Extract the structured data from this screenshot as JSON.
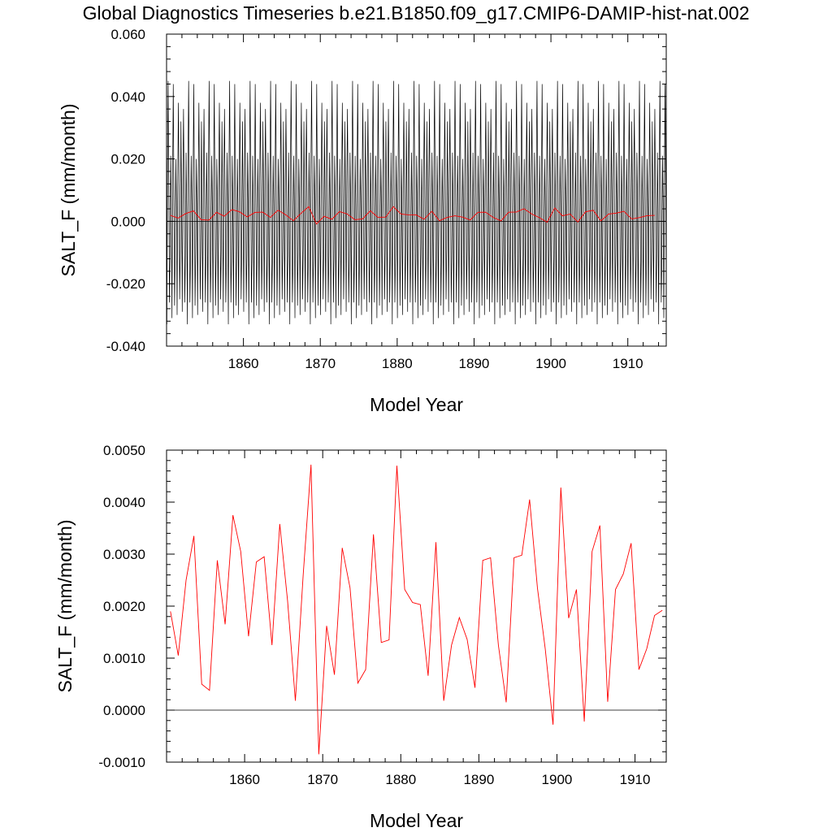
{
  "figure_title": "Global Diagnostics Timeseries b.e21.B1850.f09_g17.CMIP6-DAMIP-hist-nat.002",
  "colors": {
    "monthly": "#000000",
    "annual": "#ff0000",
    "zero_line": "#000000"
  },
  "chart_data": [
    {
      "type": "line",
      "title": "",
      "xlabel": "Model Year",
      "ylabel": "SALT_F (mm/month)",
      "xlim": [
        1850,
        1915
      ],
      "ylim": [
        -0.04,
        0.06
      ],
      "x_ticks": [
        "1860",
        "1870",
        "1880",
        "1890",
        "1900",
        "1910"
      ],
      "y_ticks": [
        "-0.040",
        "-0.020",
        "0.000",
        "0.020",
        "0.040",
        "0.060"
      ],
      "grid": false,
      "legend": "none",
      "series": [
        {
          "kind": "monthly",
          "x_start": 1850.04,
          "x_step": 0.0833,
          "values": [
            -0.033,
            0.018,
            0.045,
            0.012,
            -0.026,
            -0.012,
            0.021,
            0.005,
            -0.031,
            0.015,
            0.044,
            0.01,
            -0.027,
            -0.01,
            0.02,
            0.004,
            -0.03,
            0.014,
            0.038,
            0.011,
            -0.025,
            -0.009,
            0.032,
            0.006,
            -0.029,
            0.013,
            0.036,
            0.009,
            -0.026,
            -0.011,
            0.022,
            0.004
          ]
        },
        {
          "kind": "annual",
          "x": [
            1850.5,
            1851.5,
            1852.5,
            1853.5,
            1854.5,
            1855.5,
            1856.5,
            1857.5,
            1858.5,
            1859.5,
            1860.5,
            1861.5,
            1862.5,
            1863.5,
            1864.5,
            1865.5,
            1866.5,
            1867.5,
            1868.5,
            1869.5,
            1870.5,
            1871.5,
            1872.5,
            1873.5,
            1874.5,
            1875.5,
            1876.5,
            1877.5,
            1878.5,
            1879.5,
            1880.5,
            1881.5,
            1882.5,
            1883.5,
            1884.5,
            1885.5,
            1886.5,
            1887.5,
            1888.5,
            1889.5,
            1890.5,
            1891.5,
            1892.5,
            1893.5,
            1894.5,
            1895.5,
            1896.5,
            1897.5,
            1898.5,
            1899.5,
            1900.5,
            1901.5,
            1902.5,
            1903.5,
            1904.5,
            1905.5,
            1906.5,
            1907.5,
            1908.5,
            1909.5,
            1910.5,
            1911.5,
            1912.5,
            1913.5
          ],
          "values": [
            0.0019,
            0.00105,
            0.0025,
            0.00335,
            0.0005,
            0.00038,
            0.00288,
            0.00165,
            0.00375,
            0.00305,
            0.00142,
            0.00285,
            0.00295,
            0.00125,
            0.00358,
            0.0021,
            0.00018,
            0.0026,
            0.00472,
            -0.00085,
            0.00162,
            0.00068,
            0.00312,
            0.00235,
            0.00052,
            0.00078,
            0.00338,
            0.0013,
            0.00135,
            0.0047,
            0.00232,
            0.00207,
            0.00203,
            0.00066,
            0.00323,
            0.00018,
            0.00125,
            0.00178,
            0.00136,
            0.00043,
            0.00288,
            0.00293,
            0.00125,
            0.00015,
            0.00293,
            0.00298,
            0.00405,
            0.00235,
            0.00118,
            -0.00028,
            0.00428,
            0.00177,
            0.00232,
            -0.00022,
            0.00305,
            0.00355,
            0.00016,
            0.00232,
            0.00262,
            0.00321,
            0.00078,
            0.00118,
            0.00182,
            0.00192
          ]
        }
      ]
    },
    {
      "type": "line",
      "title": "",
      "xlabel": "Model Year",
      "ylabel": "SALT_F (mm/month)",
      "xlim": [
        1850,
        1914
      ],
      "ylim": [
        -0.001,
        0.005
      ],
      "x_ticks": [
        "1860",
        "1870",
        "1880",
        "1890",
        "1900",
        "1910"
      ],
      "y_ticks": [
        "-0.0010",
        "0.0000",
        "0.0010",
        "0.0020",
        "0.0030",
        "0.0040",
        "0.0050"
      ],
      "grid": false,
      "legend": "none",
      "series": [
        {
          "kind": "annual",
          "x": [
            1850.5,
            1851.5,
            1852.5,
            1853.5,
            1854.5,
            1855.5,
            1856.5,
            1857.5,
            1858.5,
            1859.5,
            1860.5,
            1861.5,
            1862.5,
            1863.5,
            1864.5,
            1865.5,
            1866.5,
            1867.5,
            1868.5,
            1869.5,
            1870.5,
            1871.5,
            1872.5,
            1873.5,
            1874.5,
            1875.5,
            1876.5,
            1877.5,
            1878.5,
            1879.5,
            1880.5,
            1881.5,
            1882.5,
            1883.5,
            1884.5,
            1885.5,
            1886.5,
            1887.5,
            1888.5,
            1889.5,
            1890.5,
            1891.5,
            1892.5,
            1893.5,
            1894.5,
            1895.5,
            1896.5,
            1897.5,
            1898.5,
            1899.5,
            1900.5,
            1901.5,
            1902.5,
            1903.5,
            1904.5,
            1905.5,
            1906.5,
            1907.5,
            1908.5,
            1909.5,
            1910.5,
            1911.5,
            1912.5,
            1913.5
          ],
          "values": [
            0.0019,
            0.00105,
            0.0025,
            0.00335,
            0.0005,
            0.00038,
            0.00288,
            0.00165,
            0.00375,
            0.00305,
            0.00142,
            0.00285,
            0.00295,
            0.00125,
            0.00358,
            0.0021,
            0.00018,
            0.0026,
            0.00472,
            -0.00085,
            0.00162,
            0.00068,
            0.00312,
            0.00235,
            0.00052,
            0.00078,
            0.00338,
            0.0013,
            0.00135,
            0.0047,
            0.00232,
            0.00207,
            0.00203,
            0.00066,
            0.00323,
            0.00018,
            0.00125,
            0.00178,
            0.00136,
            0.00043,
            0.00288,
            0.00293,
            0.00125,
            0.00015,
            0.00293,
            0.00298,
            0.00405,
            0.00235,
            0.00118,
            -0.00028,
            0.00428,
            0.00177,
            0.00232,
            -0.00022,
            0.00305,
            0.00355,
            0.00016,
            0.00232,
            0.00262,
            0.00321,
            0.00078,
            0.00118,
            0.00182,
            0.00192
          ]
        }
      ]
    }
  ]
}
